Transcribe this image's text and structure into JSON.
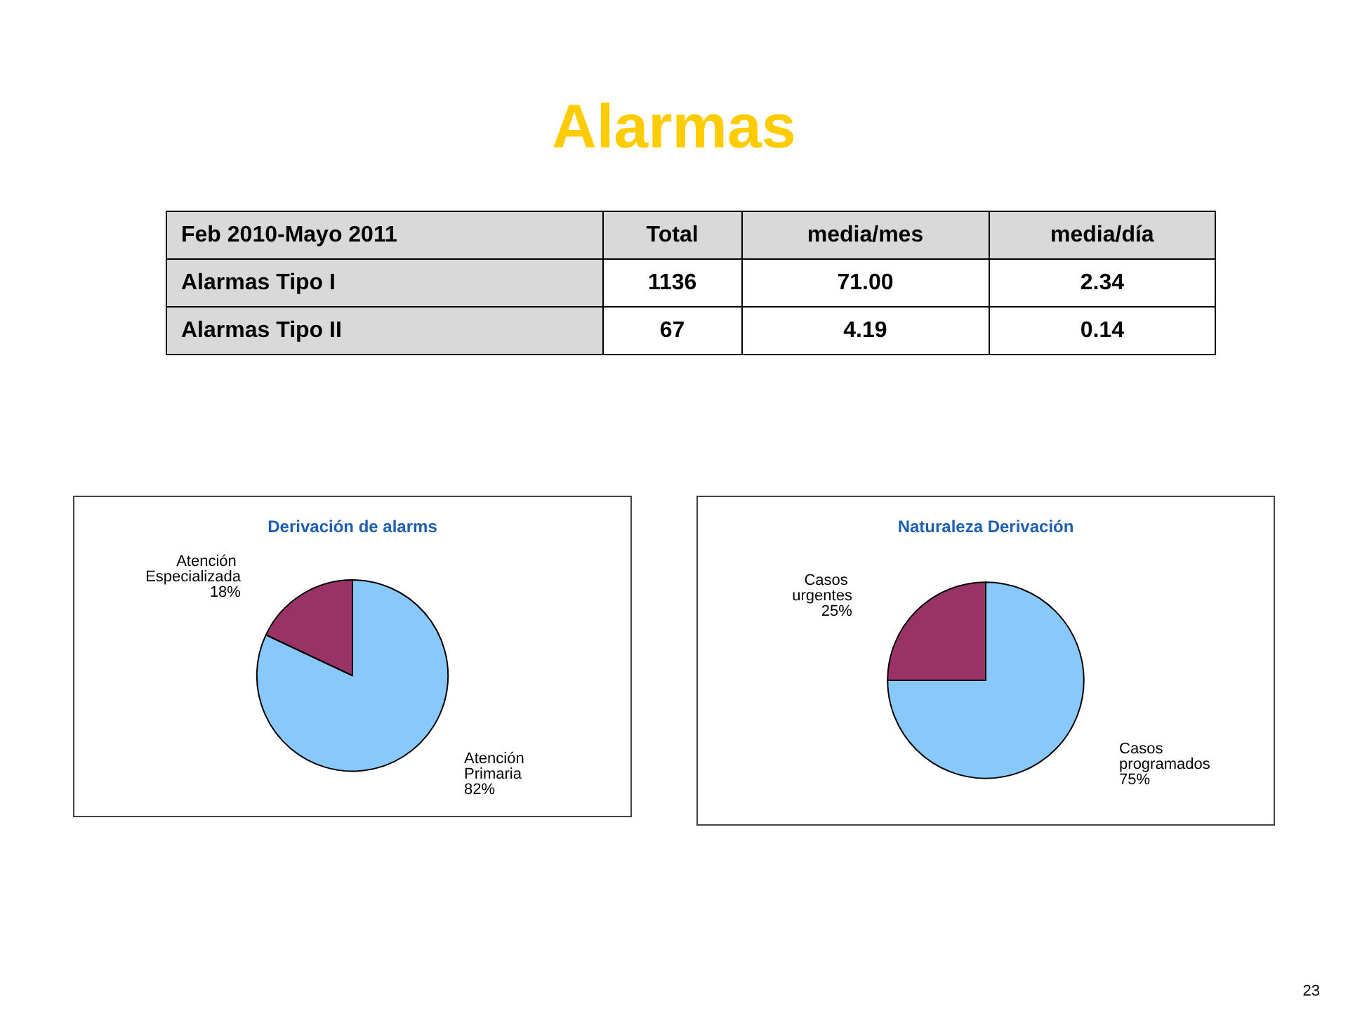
{
  "chart_data": [
    {
      "type": "other",
      "title": "Alarmas",
      "ylabel": "Feb 2010-Mayo 2011",
      "categories": [
        "Total",
        "media/mes",
        "media/día"
      ],
      "y_categories": [
        "Alarmas Tipo I",
        "Alarmas Tipo II"
      ],
      "cell_labels": [
        [
          "1136",
          "71.00",
          "2.34"
        ],
        [
          "67",
          "4.19",
          "0.14"
        ]
      ],
      "annotations": [
        "23"
      ]
    },
    {
      "type": "pie",
      "title": "Derivación de alarms",
      "categories": [
        "Atención Primaria",
        "Atención Especializada"
      ],
      "values": [
        82,
        18
      ],
      "colors": [
        "#88c8fa",
        "#993366"
      ],
      "value_labels": [
        "82%",
        "18%"
      ]
    },
    {
      "type": "pie",
      "title": "Naturaleza Derivación",
      "categories": [
        "Casos programados",
        "Casos urgentes"
      ],
      "values": [
        75,
        25
      ],
      "colors": [
        "#88c8fa",
        "#993366"
      ],
      "value_labels": [
        "75%",
        "25%"
      ]
    }
  ]
}
